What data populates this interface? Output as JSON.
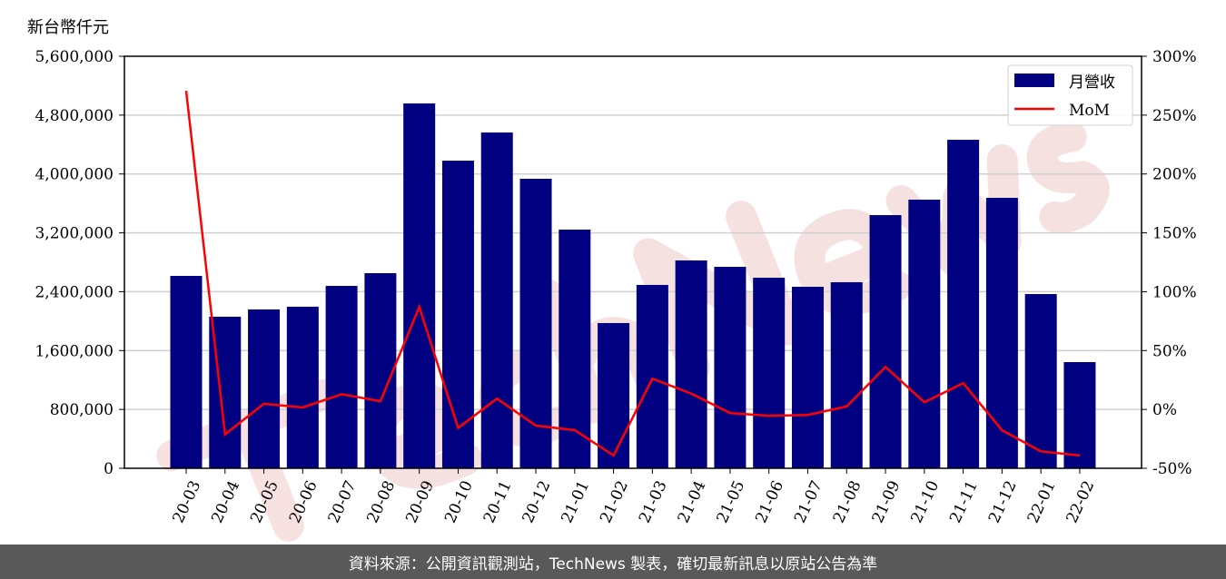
{
  "chart_data": {
    "type": "bar",
    "unit_label": "新台幣仟元",
    "categories": [
      "20-03",
      "20-04",
      "20-05",
      "20-06",
      "20-07",
      "20-08",
      "20-09",
      "20-10",
      "20-11",
      "20-12",
      "21-01",
      "21-02",
      "21-03",
      "21-04",
      "21-05",
      "21-06",
      "21-07",
      "21-08",
      "21-09",
      "21-10",
      "21-11",
      "21-12",
      "22-01",
      "22-02"
    ],
    "series": [
      {
        "name": "月營收",
        "type": "bar",
        "axis": "left",
        "color": "#000080",
        "values": [
          2615000,
          2060000,
          2159000,
          2196000,
          2479000,
          2652000,
          4959000,
          4181000,
          4564000,
          3935000,
          3244000,
          1974000,
          2492000,
          2825000,
          2738000,
          2590000,
          2467000,
          2529000,
          3441000,
          3651000,
          4465000,
          3676000,
          2368000,
          1443000
        ]
      },
      {
        "name": "MoM",
        "type": "line",
        "axis": "right",
        "color": "#ff0000",
        "values": [
          270.6,
          -21.2,
          4.8,
          1.7,
          12.9,
          7.0,
          87.0,
          -15.7,
          9.2,
          -13.8,
          -17.6,
          -39.1,
          26.2,
          13.4,
          -3.1,
          -5.4,
          -4.7,
          2.5,
          36.1,
          6.1,
          22.3,
          -17.7,
          -35.6,
          -39.1
        ]
      }
    ],
    "ylim": [
      0,
      5600000
    ],
    "yticks": [
      0,
      800000,
      1600000,
      2400000,
      3200000,
      4000000,
      4800000,
      5600000
    ],
    "ytick_labels": [
      "0",
      "800,000",
      "1,600,000",
      "2,400,000",
      "3,200,000",
      "4,000,000",
      "4,800,000",
      "5,600,000"
    ],
    "y2lim": [
      -50,
      300
    ],
    "y2ticks": [
      -50,
      0,
      50,
      100,
      150,
      200,
      250,
      300
    ],
    "y2tick_labels": [
      "-50%",
      "0%",
      "50%",
      "100%",
      "150%",
      "200%",
      "250%",
      "300%"
    ],
    "grid": true,
    "legend_position": "top-right",
    "watermark": "TechNews"
  },
  "footer": "資料來源：公開資訊觀測站，TechNews 製表，確切最新訊息以原站公告為準"
}
